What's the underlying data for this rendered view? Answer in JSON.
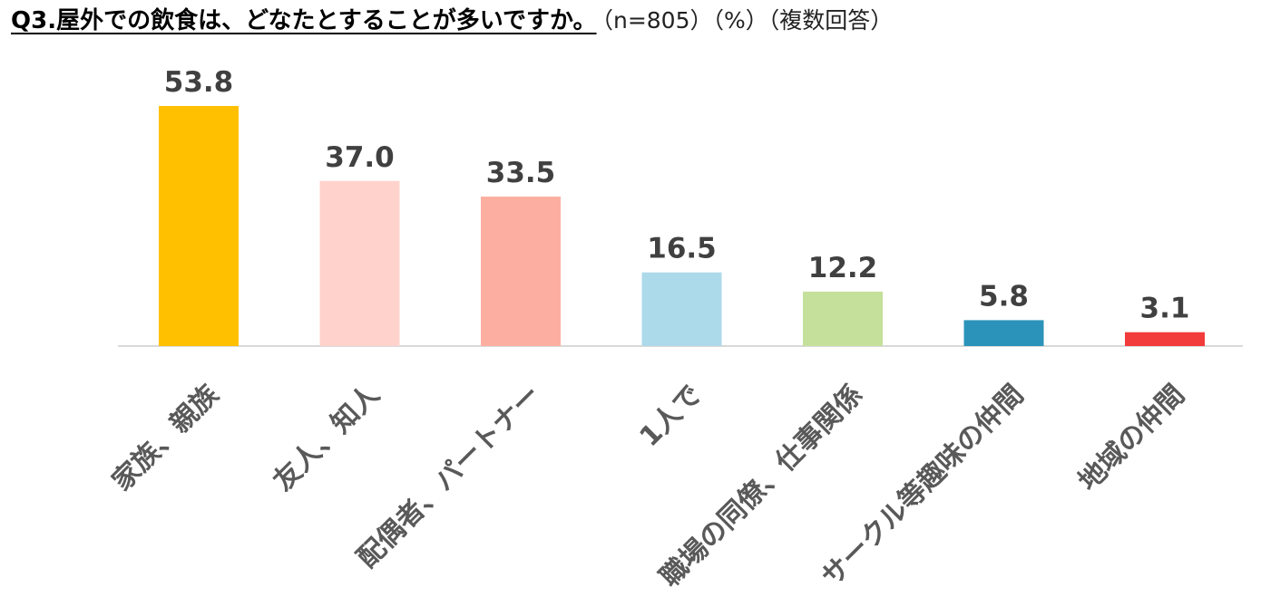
{
  "title": "Q3.屋外での飲食は、どなたとすることが多いですか。",
  "title_note": "（n=805）（%）（複数回答）",
  "chart_data": {
    "type": "bar",
    "title": "Q3.屋外での飲食は、どなたとすることが多いですか。",
    "categories": [
      "家族、親族",
      "友人、知人",
      "配偶者、パートナー",
      "1人で",
      "職場の同僚、仕事関係",
      "サークル等趣味の仲間",
      "地域の仲間"
    ],
    "values": [
      53.8,
      37.0,
      33.5,
      16.5,
      12.2,
      5.8,
      3.1
    ],
    "value_labels": [
      "53.8",
      "37.0",
      "33.5",
      "16.5",
      "12.2",
      "5.8",
      "3.1"
    ],
    "colors": [
      "#FFC000",
      "#FFD3CC",
      "#FCAFA0",
      "#ADDAEA",
      "#C4E09A",
      "#2B93BA",
      "#F23B3B"
    ],
    "ylim": [
      0,
      60
    ],
    "grid": false,
    "legend": "none"
  }
}
